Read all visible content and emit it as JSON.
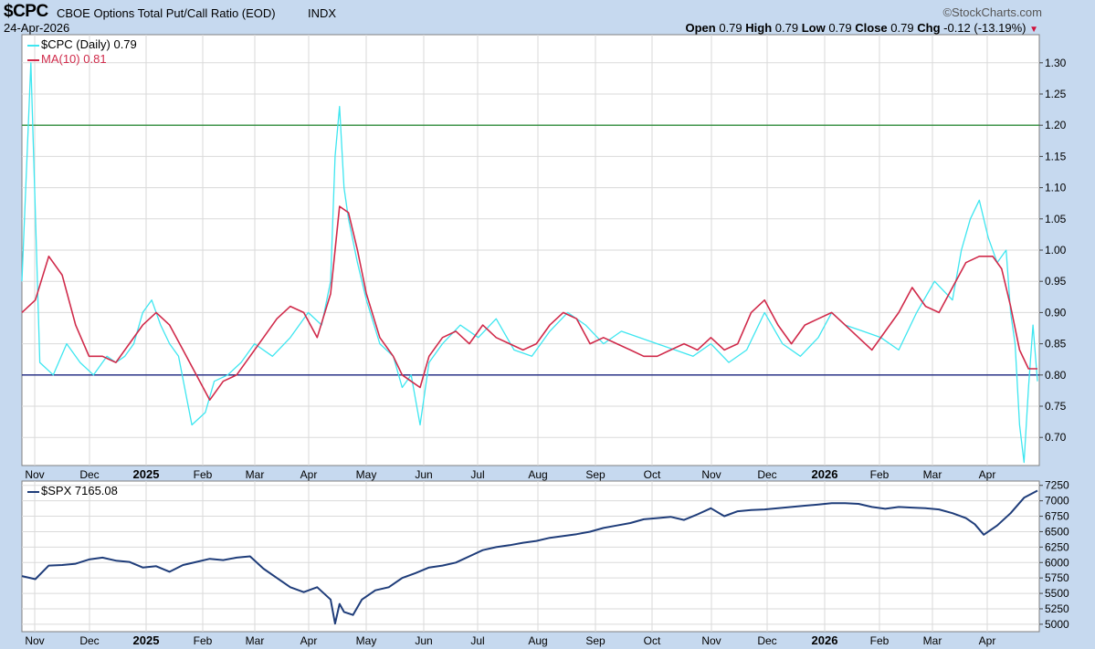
{
  "header": {
    "symbol": "$CPC",
    "description": "CBOE Options Total Put/Call Ratio (EOD)",
    "exchange": "INDX",
    "date": "24-Apr-2026",
    "brand": "©StockCharts.com",
    "open_label": "Open",
    "open": "0.79",
    "high_label": "High",
    "high": "0.79",
    "low_label": "Low",
    "low": "0.79",
    "close_label": "Close",
    "close": "0.79",
    "chg_label": "Chg",
    "chg": "-0.12 (-13.19%)"
  },
  "colors": {
    "frame": "#c6d9ef",
    "cpc_line": "#3ee6f0",
    "ma_line": "#d02a4a",
    "spx_line": "#1f3d7a",
    "upper_ref_line": "#2e8b3a",
    "lower_ref_line": "#1a237e",
    "grid": "#dadada"
  },
  "chart_data": [
    {
      "type": "line",
      "legend_position": "top-left",
      "grid": true,
      "x_labels": [
        "Nov",
        "Dec",
        "2025",
        "Feb",
        "Mar",
        "Apr",
        "May",
        "Jun",
        "Jul",
        "Aug",
        "Sep",
        "Oct",
        "Nov",
        "Dec",
        "2026",
        "Feb",
        "Mar",
        "Apr"
      ],
      "ylim": [
        0.655,
        1.345
      ],
      "yticks": [
        "0.70",
        "0.75",
        "0.80",
        "0.85",
        "0.90",
        "0.95",
        "1.00",
        "1.05",
        "1.10",
        "1.15",
        "1.20",
        "1.25",
        "1.30"
      ],
      "reference_lines": [
        1.2,
        0.8
      ],
      "series": [
        {
          "name": "$CPC (Daily)",
          "last_value": "0.79",
          "x": [
            0,
            10,
            20,
            35,
            50,
            65,
            80,
            95,
            105,
            115,
            125,
            135,
            145,
            155,
            165,
            175,
            190,
            205,
            215,
            230,
            245,
            260,
            280,
            300,
            320,
            335,
            345,
            350,
            355,
            360,
            365,
            375,
            385,
            400,
            415,
            425,
            435,
            445,
            455,
            470,
            490,
            510,
            530,
            550,
            570,
            590,
            610,
            630,
            650,
            670,
            690,
            710,
            730,
            750,
            770,
            790,
            810,
            830,
            850,
            870,
            890,
            905,
            920,
            940,
            960,
            980,
            1000,
            1020,
            1040,
            1050,
            1060,
            1070,
            1080,
            1090,
            1100,
            1105,
            1110,
            1115,
            1120,
            1125,
            1130,
            1135
          ],
          "y": [
            0.95,
            1.3,
            0.82,
            0.8,
            0.85,
            0.82,
            0.8,
            0.83,
            0.82,
            0.83,
            0.85,
            0.9,
            0.92,
            0.88,
            0.85,
            0.83,
            0.72,
            0.74,
            0.79,
            0.8,
            0.82,
            0.85,
            0.83,
            0.86,
            0.9,
            0.88,
            0.95,
            1.15,
            1.23,
            1.1,
            1.05,
            0.98,
            0.92,
            0.85,
            0.83,
            0.78,
            0.8,
            0.72,
            0.82,
            0.85,
            0.88,
            0.86,
            0.89,
            0.84,
            0.83,
            0.87,
            0.9,
            0.88,
            0.85,
            0.87,
            0.86,
            0.85,
            0.84,
            0.83,
            0.85,
            0.82,
            0.84,
            0.9,
            0.85,
            0.83,
            0.86,
            0.9,
            0.88,
            0.87,
            0.86,
            0.84,
            0.9,
            0.95,
            0.92,
            1.0,
            1.05,
            1.08,
            1.02,
            0.98,
            1.0,
            0.9,
            0.85,
            0.72,
            0.66,
            0.78,
            0.88,
            0.79
          ]
        },
        {
          "name": "MA(10)",
          "last_value": "0.81",
          "x": [
            0,
            15,
            30,
            45,
            60,
            75,
            90,
            105,
            120,
            135,
            150,
            165,
            180,
            195,
            210,
            225,
            240,
            255,
            270,
            285,
            300,
            315,
            330,
            345,
            355,
            365,
            375,
            385,
            400,
            415,
            425,
            435,
            445,
            455,
            470,
            485,
            500,
            515,
            530,
            545,
            560,
            575,
            590,
            605,
            620,
            635,
            650,
            665,
            680,
            695,
            710,
            725,
            740,
            755,
            770,
            785,
            800,
            815,
            830,
            845,
            860,
            875,
            890,
            905,
            920,
            935,
            950,
            965,
            980,
            995,
            1010,
            1025,
            1040,
            1055,
            1070,
            1085,
            1095,
            1105,
            1115,
            1125,
            1135
          ],
          "y": [
            0.9,
            0.92,
            0.99,
            0.96,
            0.88,
            0.83,
            0.83,
            0.82,
            0.85,
            0.88,
            0.9,
            0.88,
            0.84,
            0.8,
            0.76,
            0.79,
            0.8,
            0.83,
            0.86,
            0.89,
            0.91,
            0.9,
            0.86,
            0.93,
            1.07,
            1.06,
            1.0,
            0.93,
            0.86,
            0.83,
            0.8,
            0.79,
            0.78,
            0.83,
            0.86,
            0.87,
            0.85,
            0.88,
            0.86,
            0.85,
            0.84,
            0.85,
            0.88,
            0.9,
            0.89,
            0.85,
            0.86,
            0.85,
            0.84,
            0.83,
            0.83,
            0.84,
            0.85,
            0.84,
            0.86,
            0.84,
            0.85,
            0.9,
            0.92,
            0.88,
            0.85,
            0.88,
            0.89,
            0.9,
            0.88,
            0.86,
            0.84,
            0.87,
            0.9,
            0.94,
            0.91,
            0.9,
            0.94,
            0.98,
            0.99,
            0.99,
            0.97,
            0.91,
            0.84,
            0.81,
            0.81
          ]
        }
      ]
    },
    {
      "type": "line",
      "legend_position": "top-left",
      "grid": true,
      "x_labels": [
        "Nov",
        "Dec",
        "2025",
        "Feb",
        "Mar",
        "Apr",
        "May",
        "Jun",
        "Jul",
        "Aug",
        "Sep",
        "Oct",
        "Nov",
        "Dec",
        "2026",
        "Feb",
        "Mar",
        "Apr"
      ],
      "ylim": [
        4880,
        7320
      ],
      "yticks": [
        "5000",
        "5250",
        "5500",
        "5750",
        "6000",
        "6250",
        "6500",
        "6750",
        "7000",
        "7250"
      ],
      "series": [
        {
          "name": "$SPX",
          "last_value": "7165.08",
          "x": [
            0,
            15,
            30,
            45,
            60,
            75,
            90,
            105,
            120,
            135,
            150,
            165,
            180,
            195,
            210,
            225,
            240,
            255,
            270,
            285,
            300,
            315,
            330,
            345,
            350,
            355,
            360,
            370,
            380,
            395,
            410,
            425,
            440,
            455,
            470,
            485,
            500,
            515,
            530,
            545,
            560,
            575,
            590,
            605,
            620,
            635,
            650,
            665,
            680,
            695,
            710,
            725,
            740,
            755,
            770,
            785,
            800,
            815,
            830,
            845,
            860,
            875,
            890,
            905,
            920,
            935,
            950,
            965,
            980,
            995,
            1010,
            1025,
            1040,
            1055,
            1065,
            1075,
            1090,
            1105,
            1120,
            1135
          ],
          "y": [
            5780,
            5730,
            5950,
            5960,
            5980,
            6050,
            6080,
            6030,
            6010,
            5920,
            5940,
            5850,
            5960,
            6010,
            6060,
            6040,
            6080,
            6100,
            5900,
            5750,
            5600,
            5520,
            5600,
            5400,
            5010,
            5330,
            5200,
            5150,
            5400,
            5550,
            5600,
            5750,
            5830,
            5920,
            5950,
            6000,
            6100,
            6200,
            6250,
            6280,
            6320,
            6350,
            6400,
            6430,
            6460,
            6500,
            6560,
            6600,
            6640,
            6700,
            6720,
            6740,
            6690,
            6780,
            6880,
            6750,
            6830,
            6850,
            6860,
            6880,
            6900,
            6920,
            6940,
            6960,
            6960,
            6950,
            6900,
            6870,
            6900,
            6890,
            6880,
            6860,
            6800,
            6720,
            6620,
            6450,
            6600,
            6800,
            7050,
            7165
          ]
        }
      ]
    }
  ]
}
